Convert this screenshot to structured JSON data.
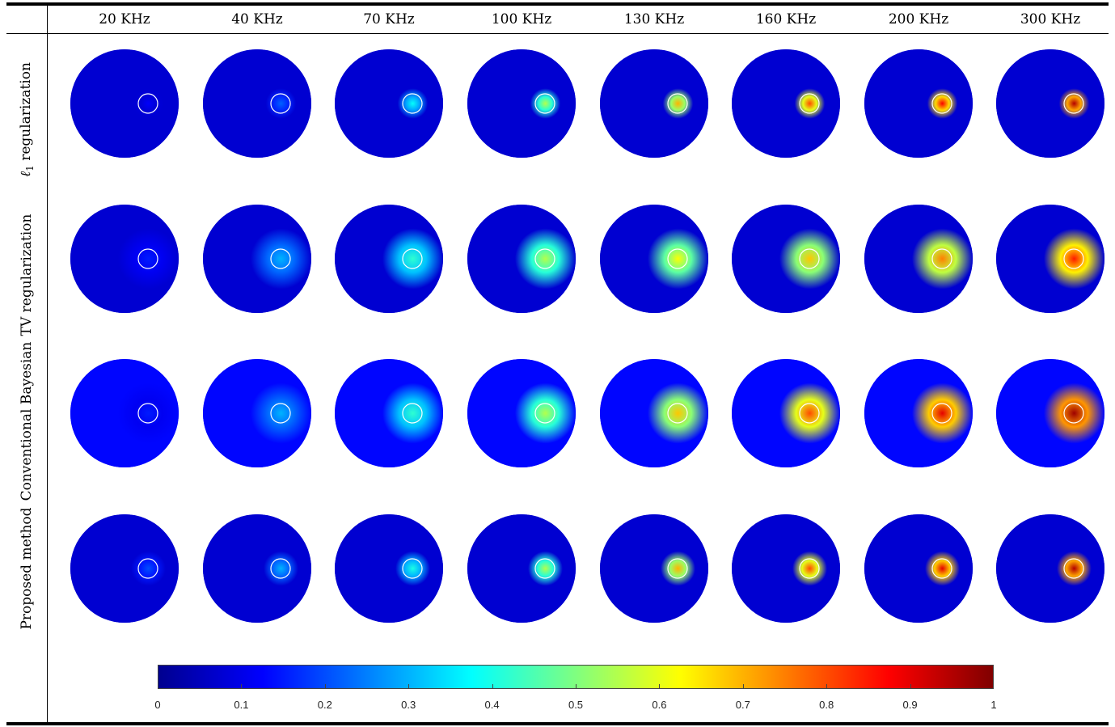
{
  "columns": [
    "20 KHz",
    "40 KHz",
    "70 KHz",
    "100 KHz",
    "130 KHz",
    "160 KHz",
    "200 KHz",
    "300 KHz"
  ],
  "rows": [
    {
      "label_symbol": "ℓ",
      "label_sub": "1",
      "label_text": " regularization"
    },
    {
      "label": "TV regularization"
    },
    {
      "label": "Conventional Bayesian"
    },
    {
      "label": "Proposed method"
    }
  ],
  "intensities": [
    [
      0.12,
      0.22,
      0.38,
      0.55,
      0.7,
      0.8,
      0.88,
      0.95
    ],
    [
      0.15,
      0.3,
      0.42,
      0.55,
      0.62,
      0.68,
      0.75,
      0.85
    ],
    [
      0.15,
      0.3,
      0.42,
      0.55,
      0.68,
      0.8,
      0.9,
      0.97
    ],
    [
      0.2,
      0.3,
      0.4,
      0.55,
      0.7,
      0.8,
      0.9,
      0.95
    ]
  ],
  "colorbar": {
    "ticks": [
      "0",
      "0.1",
      "0.2",
      "0.3",
      "0.4",
      "0.5",
      "0.6",
      "0.7",
      "0.8",
      "0.9",
      "1"
    ],
    "range": [
      0,
      1
    ],
    "colormap": "jet"
  },
  "colors": {
    "circle_outline": "#ffffff",
    "background": "#00008f"
  }
}
